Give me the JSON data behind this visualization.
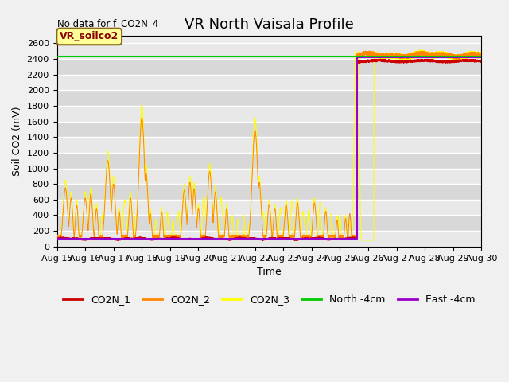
{
  "title": "VR North Vaisala Profile",
  "no_data_text": "No data for f_CO2N_4",
  "annotation_text": "VR_soilco2",
  "xlabel": "Time",
  "ylabel": "Soil CO2 (mV)",
  "ylim": [
    0,
    2700
  ],
  "yticks": [
    0,
    200,
    400,
    600,
    800,
    1000,
    1200,
    1400,
    1600,
    1800,
    2000,
    2200,
    2400,
    2600
  ],
  "xstart_day": 15,
  "xend_day": 30,
  "fig_facecolor": "#f0f0f0",
  "plot_bg_color": "#ebebeb",
  "colors": {
    "CO2N_1": "#cc0000",
    "CO2N_2": "#ff8800",
    "CO2N_3": "#ffff00",
    "North_4cm": "#00cc00",
    "East_4cm": "#9900cc"
  },
  "north_4cm_value": 2430,
  "transition_day": 25.6,
  "east_4cm_low": 100,
  "east_4cm_high": 2420,
  "co2n1_low": 90,
  "co2n1_high": 2370,
  "co2n2_high": 2440,
  "co2n3_high": 2430,
  "title_fontsize": 13,
  "label_fontsize": 9,
  "tick_fontsize": 8,
  "legend_fontsize": 9
}
